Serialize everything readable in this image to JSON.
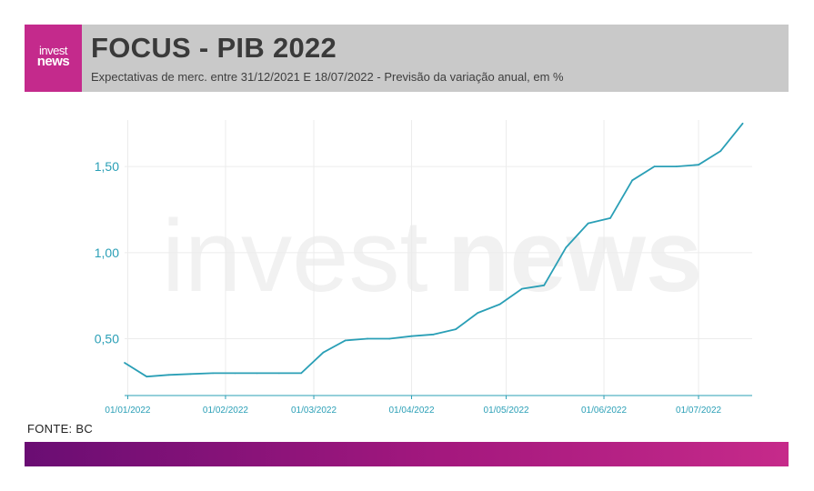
{
  "header": {
    "logo_line1": "invest",
    "logo_line2": "news",
    "title": "FOCUS - PIB 2022",
    "subtitle": "Expectativas de merc. entre 31/12/2021 E 18/07/2022 - Previsão da variação anual, em %"
  },
  "watermark": {
    "part1": "invest",
    "part2": "news"
  },
  "source": "FONTE: BC",
  "colors": {
    "line": "#2a9fb6",
    "accent": "#c42a8c",
    "header_bg": "#c9c9c9"
  },
  "chart_data": {
    "type": "line",
    "title": "FOCUS - PIB 2022",
    "subtitle": "Expectativas de merc. entre 31/12/2021 E 18/07/2022 - Previsão da variação anual, em %",
    "xlabel": "",
    "ylabel": "",
    "xlim": [
      "2021-12-31",
      "2022-07-18"
    ],
    "ylim": [
      0.17,
      1.77
    ],
    "yticks": [
      0.5,
      1.0,
      1.5
    ],
    "ytick_labels": [
      "0,50",
      "1,00",
      "1,50"
    ],
    "xticks": [
      "2022-01-01",
      "2022-02-01",
      "2022-03-01",
      "2022-04-01",
      "2022-05-01",
      "2022-06-01",
      "2022-07-01"
    ],
    "xtick_labels": [
      "01/01/2022",
      "01/02/2022",
      "01/03/2022",
      "01/04/2022",
      "01/05/2022",
      "01/06/2022",
      "01/07/2022"
    ],
    "grid": true,
    "series": [
      {
        "points": [
          [
            "2021-12-31",
            0.36
          ],
          [
            "2022-01-07",
            0.28
          ],
          [
            "2022-01-14",
            0.29
          ],
          [
            "2022-01-21",
            0.295
          ],
          [
            "2022-01-28",
            0.3
          ],
          [
            "2022-02-04",
            0.3
          ],
          [
            "2022-02-11",
            0.3
          ],
          [
            "2022-02-18",
            0.3
          ],
          [
            "2022-02-25",
            0.3
          ],
          [
            "2022-03-04",
            0.42
          ],
          [
            "2022-03-11",
            0.49
          ],
          [
            "2022-03-18",
            0.5
          ],
          [
            "2022-03-25",
            0.5
          ],
          [
            "2022-04-01",
            0.515
          ],
          [
            "2022-04-08",
            0.525
          ],
          [
            "2022-04-15",
            0.555
          ],
          [
            "2022-04-22",
            0.65
          ],
          [
            "2022-04-29",
            0.7
          ],
          [
            "2022-05-06",
            0.79
          ],
          [
            "2022-05-13",
            0.81
          ],
          [
            "2022-05-20",
            1.03
          ],
          [
            "2022-05-27",
            1.17
          ],
          [
            "2022-06-03",
            1.2
          ],
          [
            "2022-06-10",
            1.42
          ],
          [
            "2022-06-17",
            1.5
          ],
          [
            "2022-06-24",
            1.5
          ],
          [
            "2022-07-01",
            1.51
          ],
          [
            "2022-07-08",
            1.59
          ],
          [
            "2022-07-15",
            1.75
          ]
        ]
      }
    ]
  }
}
